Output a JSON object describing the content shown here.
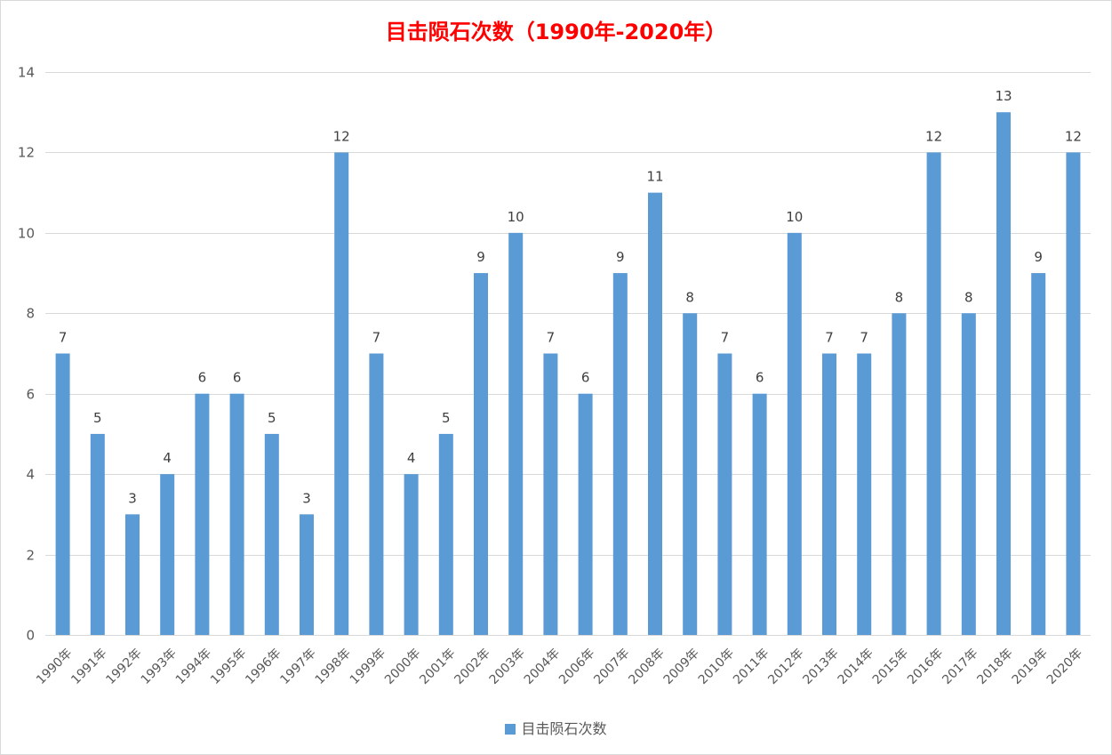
{
  "chart_data": {
    "type": "bar",
    "title": "目击陨石次数（1990年-2020年）",
    "xlabel": "",
    "ylabel": "",
    "categories": [
      "1990年",
      "1991年",
      "1992年",
      "1993年",
      "1994年",
      "1995年",
      "1996年",
      "1997年",
      "1998年",
      "1999年",
      "2000年",
      "2001年",
      "2002年",
      "2003年",
      "2004年",
      "2006年",
      "2007年",
      "2008年",
      "2009年",
      "2010年",
      "2011年",
      "2012年",
      "2013年",
      "2014年",
      "2015年",
      "2016年",
      "2017年",
      "2018年",
      "2019年",
      "2020年"
    ],
    "series": [
      {
        "name": "目击陨石次数",
        "values": [
          7,
          5,
          3,
          4,
          6,
          6,
          5,
          3,
          12,
          7,
          4,
          5,
          9,
          10,
          7,
          6,
          9,
          11,
          8,
          7,
          6,
          10,
          7,
          7,
          8,
          12,
          8,
          13,
          9,
          12
        ]
      }
    ],
    "ylim": [
      0,
      14
    ],
    "yticks": [
      0,
      2,
      4,
      6,
      8,
      10,
      12,
      14
    ],
    "grid": true,
    "legend_position": "bottom",
    "data_labels": true,
    "colors": {
      "bar": "#5b9bd5",
      "title": "#ff0000",
      "grid": "#d9d9d9",
      "axis_text": "#595959"
    }
  }
}
